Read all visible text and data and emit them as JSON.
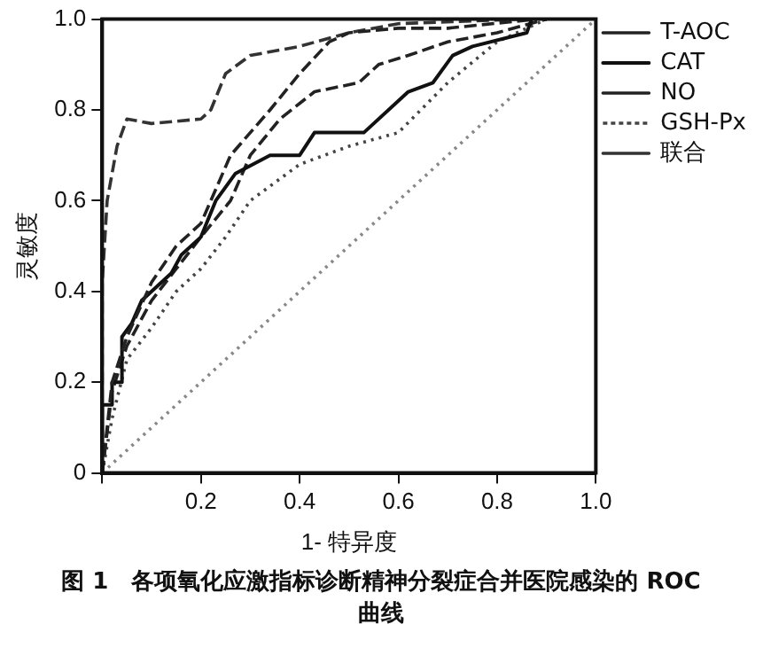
{
  "chart_data": {
    "type": "line",
    "title": "图 1　各项氧化应激指标诊断精神分裂症合并医院感染的 ROC 曲线",
    "xlabel": "1- 特异度",
    "ylabel": "灵敏度",
    "xlim": [
      0,
      1
    ],
    "ylim": [
      0,
      1
    ],
    "xticks": [
      {
        "value": 0,
        "label": null
      },
      0.2,
      0.4,
      0.6,
      0.8,
      {
        "value": 1,
        "label": "1.0"
      }
    ],
    "yticks": [
      0,
      0.2,
      0.4,
      0.6,
      0.8,
      {
        "value": 1,
        "label": "1.0"
      }
    ],
    "grid": false,
    "legend": "right",
    "marker": "none",
    "series": [
      {
        "name": "T-AOC",
        "color": "#222222",
        "line_style": "dashed",
        "x": [
          0,
          0.02,
          0.05,
          0.1,
          0.15,
          0.2,
          0.26,
          0.34,
          0.4,
          0.46,
          0.5,
          0.6,
          0.7,
          0.88
        ],
        "values": [
          0,
          0.2,
          0.3,
          0.42,
          0.5,
          0.55,
          0.7,
          0.8,
          0.88,
          0.95,
          0.97,
          0.98,
          0.98,
          1
        ]
      },
      {
        "name": "CAT",
        "color": "#111111",
        "line_style": "solid",
        "x": [
          0,
          0,
          0.02,
          0.02,
          0.04,
          0.04,
          0.06,
          0.08,
          0.1,
          0.14,
          0.16,
          0.2,
          0.23,
          0.27,
          0.34,
          0.4,
          0.43,
          0.53,
          0.62,
          0.67,
          0.71,
          0.75,
          0.86,
          0.87
        ],
        "values": [
          0,
          0.15,
          0.15,
          0.2,
          0.2,
          0.3,
          0.33,
          0.38,
          0.4,
          0.44,
          0.48,
          0.52,
          0.6,
          0.66,
          0.7,
          0.7,
          0.75,
          0.75,
          0.84,
          0.86,
          0.92,
          0.94,
          0.97,
          1
        ]
      },
      {
        "name": "NO",
        "color": "#222222",
        "line_style": "dashed",
        "x": [
          0,
          0.02,
          0.05,
          0.1,
          0.15,
          0.2,
          0.26,
          0.3,
          0.36,
          0.43,
          0.52,
          0.56,
          0.62,
          0.7,
          0.8,
          0.9
        ],
        "values": [
          0,
          0.18,
          0.28,
          0.38,
          0.45,
          0.52,
          0.6,
          0.7,
          0.78,
          0.84,
          0.86,
          0.9,
          0.92,
          0.95,
          0.97,
          1
        ]
      },
      {
        "name": "GSH-Px",
        "color": "#444444",
        "line_style": "dotted",
        "x": [
          0,
          0.02,
          0.05,
          0.1,
          0.15,
          0.2,
          0.25,
          0.3,
          0.4,
          0.5,
          0.6,
          0.7,
          0.8,
          0.9
        ],
        "values": [
          0,
          0.12,
          0.25,
          0.32,
          0.4,
          0.45,
          0.52,
          0.6,
          0.68,
          0.72,
          0.75,
          0.86,
          0.95,
          1
        ]
      },
      {
        "name": "联合",
        "color": "#333333",
        "line_style": "dashed",
        "x": [
          0,
          0,
          0.01,
          0.03,
          0.05,
          0.1,
          0.2,
          0.22,
          0.25,
          0.3,
          0.4,
          0.5,
          0.6,
          0.85
        ],
        "values": [
          0,
          0.42,
          0.6,
          0.72,
          0.78,
          0.77,
          0.78,
          0.8,
          0.88,
          0.92,
          0.94,
          0.97,
          0.99,
          1
        ]
      },
      {
        "color": "#888888",
        "line_style": "dotted",
        "x": [
          0,
          1
        ],
        "values": [
          0,
          1
        ]
      }
    ]
  }
}
